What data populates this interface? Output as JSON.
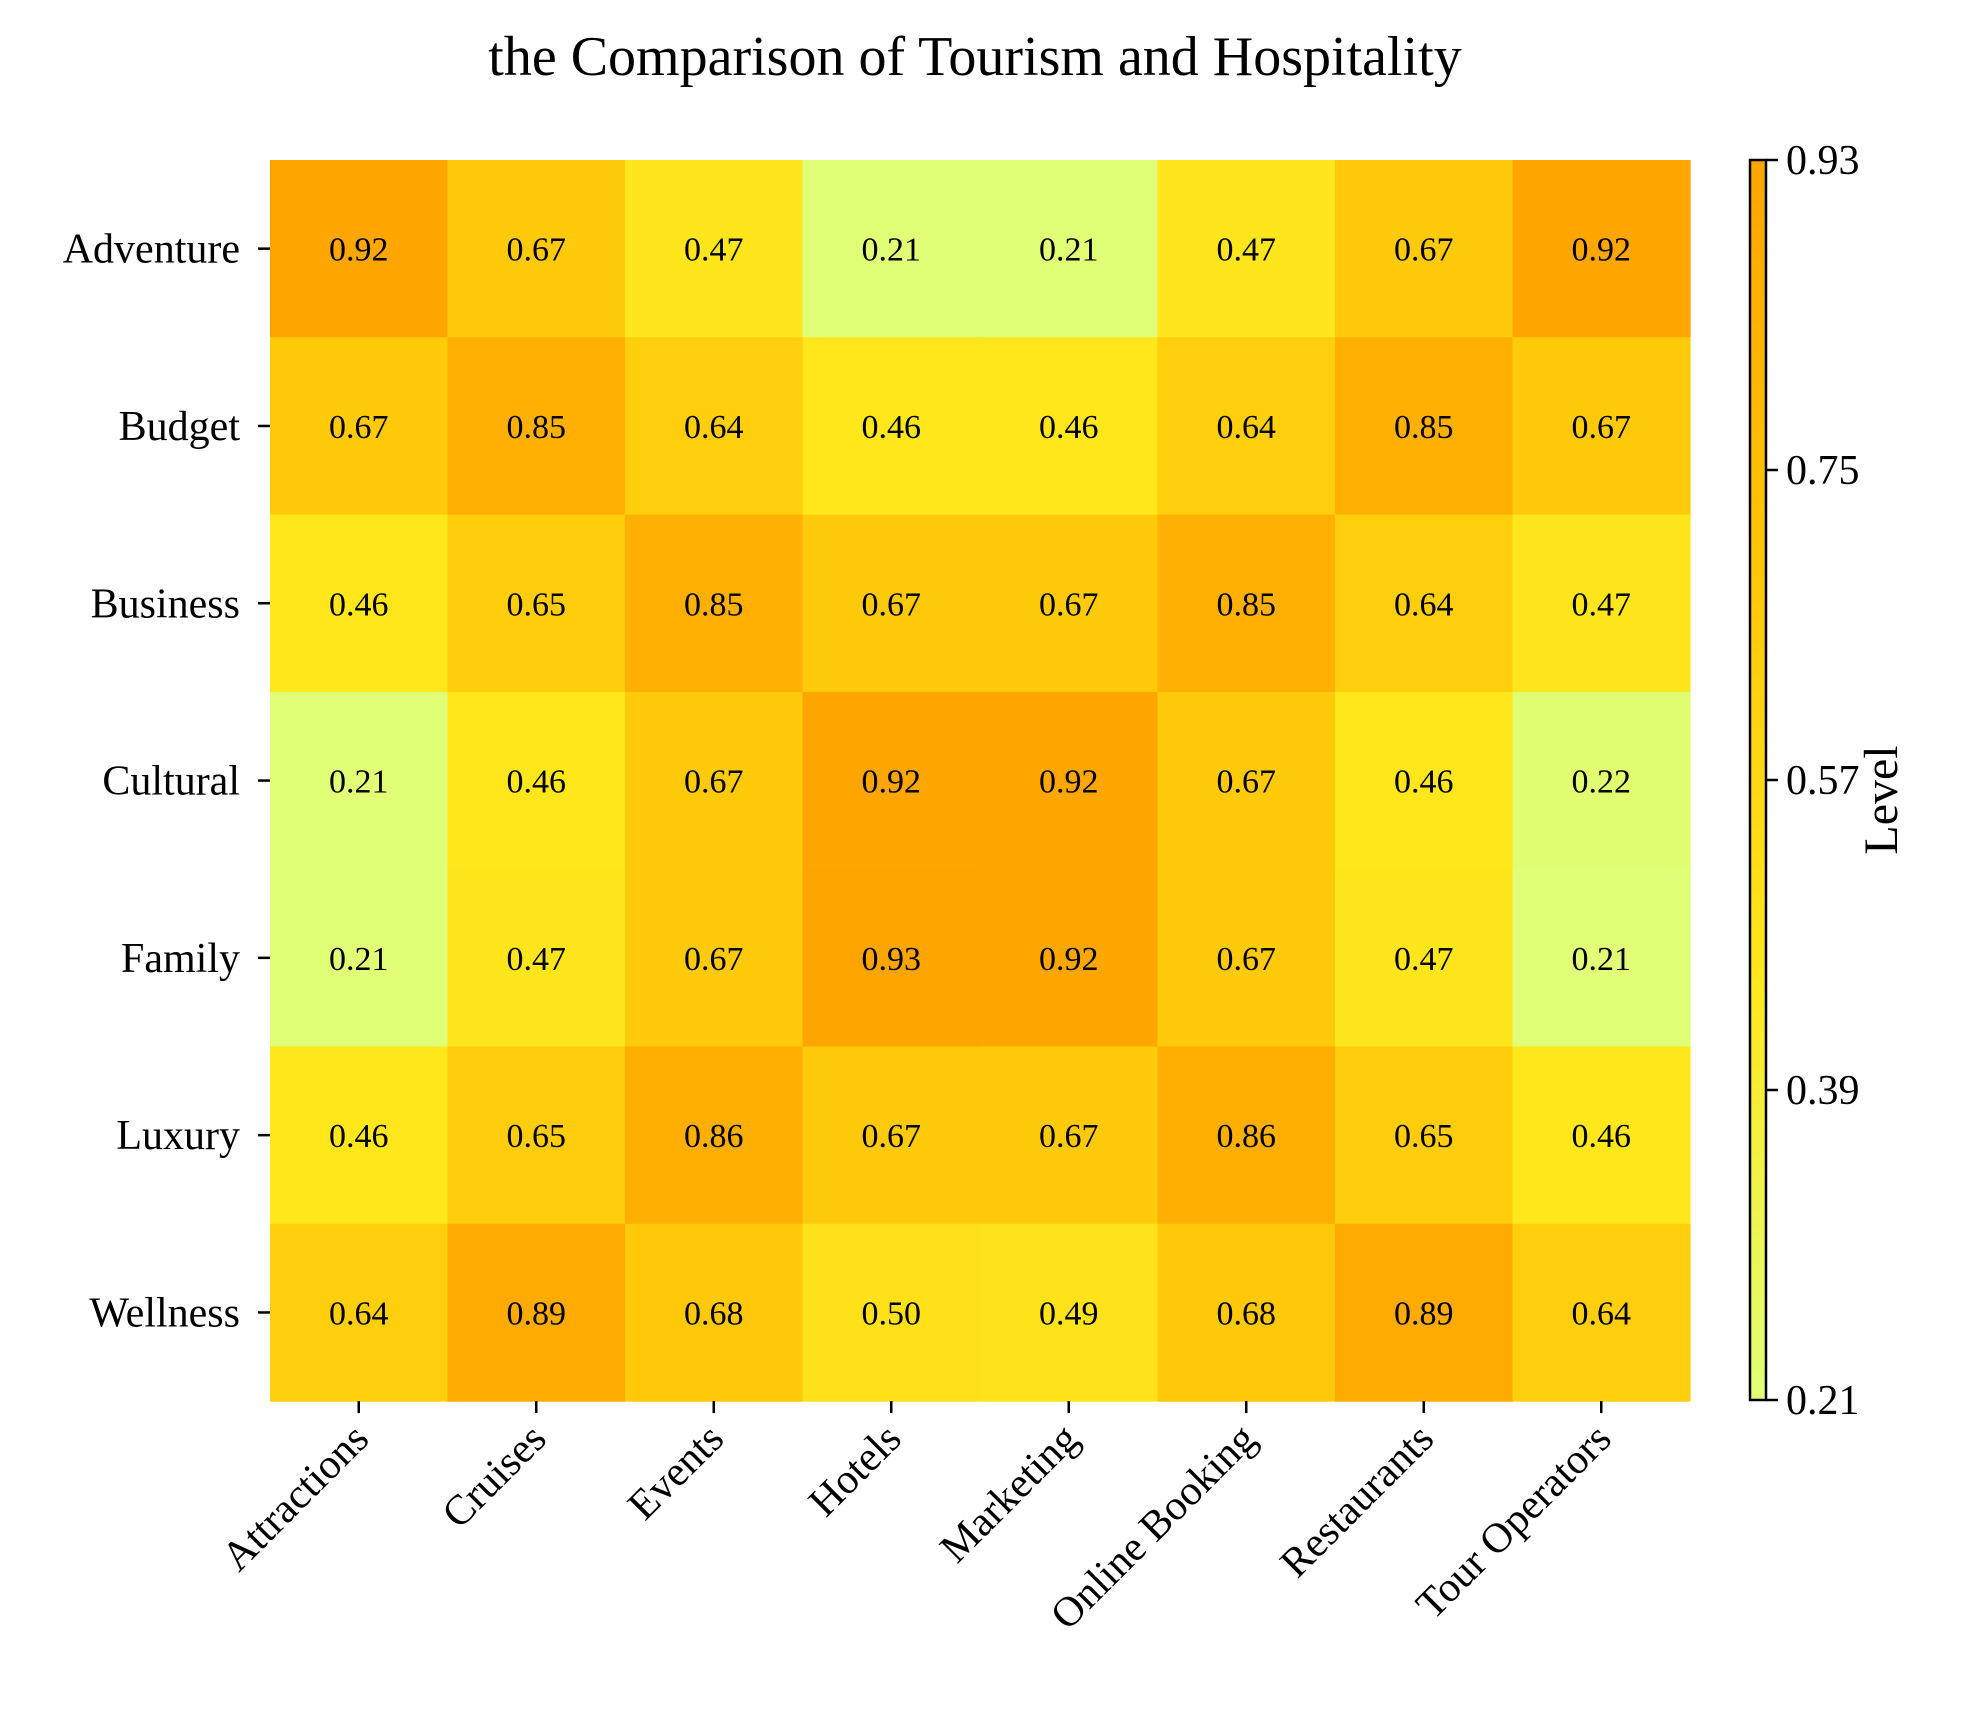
{
  "chart_data": {
    "type": "heatmap",
    "title": "the Comparison of Tourism and Hospitality",
    "rows": [
      "Adventure",
      "Budget",
      "Business",
      "Cultural",
      "Family",
      "Luxury",
      "Wellness"
    ],
    "columns": [
      "Attractions",
      "Cruises",
      "Events",
      "Hotels",
      "Marketing",
      "Online Booking",
      "Restaurants",
      "Tour Operators"
    ],
    "values": [
      [
        0.92,
        0.67,
        0.47,
        0.21,
        0.21,
        0.47,
        0.67,
        0.92
      ],
      [
        0.67,
        0.85,
        0.64,
        0.46,
        0.46,
        0.64,
        0.85,
        0.67
      ],
      [
        0.46,
        0.65,
        0.85,
        0.67,
        0.67,
        0.85,
        0.64,
        0.47
      ],
      [
        0.21,
        0.46,
        0.67,
        0.92,
        0.92,
        0.67,
        0.46,
        0.22
      ],
      [
        0.21,
        0.47,
        0.67,
        0.93,
        0.92,
        0.67,
        0.47,
        0.21
      ],
      [
        0.46,
        0.65,
        0.86,
        0.67,
        0.67,
        0.86,
        0.65,
        0.46
      ],
      [
        0.64,
        0.89,
        0.68,
        0.5,
        0.49,
        0.68,
        0.89,
        0.64
      ]
    ],
    "value_labels": [
      [
        "0.92",
        "0.67",
        "0.47",
        "0.21",
        "0.21",
        "0.47",
        "0.67",
        "0.92"
      ],
      [
        "0.67",
        "0.85",
        "0.64",
        "0.46",
        "0.46",
        "0.64",
        "0.85",
        "0.67"
      ],
      [
        "0.46",
        "0.65",
        "0.85",
        "0.67",
        "0.67",
        "0.85",
        "0.64",
        "0.47"
      ],
      [
        "0.21",
        "0.46",
        "0.67",
        "0.92",
        "0.92",
        "0.67",
        "0.46",
        "0.22"
      ],
      [
        "0.21",
        "0.47",
        "0.67",
        "0.93",
        "0.92",
        "0.67",
        "0.47",
        "0.21"
      ],
      [
        "0.46",
        "0.65",
        "0.86",
        "0.67",
        "0.67",
        "0.86",
        "0.65",
        "0.46"
      ],
      [
        "0.64",
        "0.89",
        "0.68",
        "0.50",
        "0.49",
        "0.68",
        "0.89",
        "0.64"
      ]
    ],
    "colorbar": {
      "label": "Level",
      "min": 0.21,
      "max": 0.93,
      "ticks": [
        0.21,
        0.39,
        0.57,
        0.75,
        0.93
      ],
      "tick_labels": [
        "0.21",
        "0.39",
        "0.57",
        "0.75",
        "0.93"
      ],
      "colors": [
        "#e0ff77",
        "#ffe81d",
        "#ffc708",
        "#ffa500"
      ]
    }
  }
}
